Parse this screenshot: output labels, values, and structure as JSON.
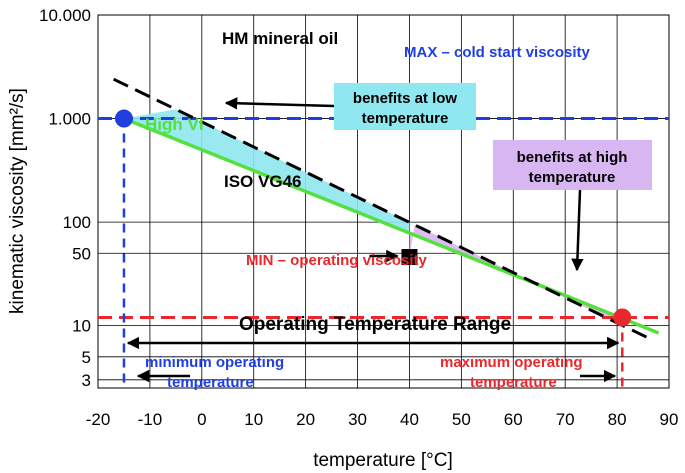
{
  "chart_data": {
    "type": "line",
    "xlabel": "temperature [°C]",
    "ylabel": "kinematic viscosity  [mm²/s]",
    "x_scale": "linear",
    "y_scale": "log",
    "xlim": [
      -20,
      90
    ],
    "ylim": [
      2.5,
      10000
    ],
    "grid": true,
    "x_ticks": [
      -20,
      -10,
      0,
      10,
      20,
      30,
      40,
      50,
      60,
      70,
      80,
      90
    ],
    "x_tick_labels": [
      "-20",
      "-10",
      "0",
      "10",
      "20",
      "30",
      "40",
      "50",
      "60",
      "70",
      "80",
      "90"
    ],
    "y_ticks": [
      3,
      5,
      10,
      50,
      100,
      1000,
      10000
    ],
    "y_tick_labels": [
      "3",
      "5",
      "10",
      "50",
      "100",
      "1.000",
      "10.000"
    ],
    "colors": {
      "max_line": "#1f3fe0",
      "min_line": "#e8282d",
      "high_vi": "#55e040",
      "hm_oil": "#000000",
      "benefit_low": "#8fe7ef",
      "benefit_high": "#d8b6f2",
      "reference": "#000000"
    },
    "series": [
      {
        "name": "HM mineral oil",
        "style": "dashed",
        "x": [
          -17,
          87
        ],
        "y": [
          2400,
          7.2
        ]
      },
      {
        "name": "High VI",
        "style": "solid",
        "x": [
          -15,
          88
        ],
        "y": [
          1000,
          8.5
        ]
      }
    ],
    "reference_lines": {
      "max": {
        "label": "MAX – cold start viscosity",
        "y": 1000
      },
      "min": {
        "label": "MIN – operating viscosity",
        "y": 12
      }
    },
    "points": {
      "cold_start": {
        "x": -15,
        "y": 1000
      },
      "iso_vg46": {
        "x": 40,
        "y": 46,
        "label": "ISO VG46"
      },
      "operating_max": {
        "x": 81,
        "y": 12
      }
    },
    "annotations": {
      "benefits_low": [
        "benefits at  low",
        "temperature"
      ],
      "benefits_high": [
        "benefits at high",
        "temperature"
      ],
      "range_title": "Operating Temperature Range",
      "min_temp": [
        "minimum operating",
        "temperature"
      ],
      "max_temp": [
        "maximum operating",
        "temperature"
      ]
    }
  }
}
